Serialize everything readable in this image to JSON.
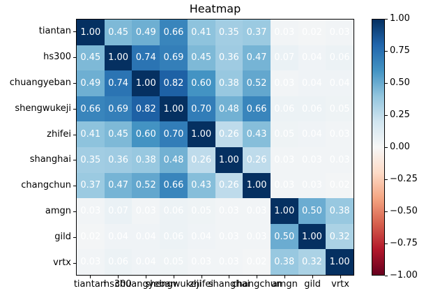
{
  "title": "Heatmap",
  "chart_data": {
    "type": "heatmap",
    "title": "Heatmap",
    "x_categories": [
      "tiantan",
      "hs300",
      "chuangyeban",
      "shengwukeji",
      "zhifei",
      "shanghai",
      "changchun",
      "amgn",
      "gild",
      "vrtx"
    ],
    "y_categories": [
      "tiantan",
      "hs300",
      "chuangyeban",
      "shengwukeji",
      "zhifei",
      "shanghai",
      "changchun",
      "amgn",
      "gild",
      "vrtx"
    ],
    "values": [
      [
        1.0,
        0.45,
        0.49,
        0.66,
        0.41,
        0.35,
        0.37,
        0.03,
        0.02,
        0.03
      ],
      [
        0.45,
        1.0,
        0.74,
        0.69,
        0.45,
        0.36,
        0.47,
        0.07,
        0.04,
        0.06
      ],
      [
        0.49,
        0.74,
        1.0,
        0.82,
        0.6,
        0.38,
        0.52,
        0.03,
        0.04,
        0.04
      ],
      [
        0.66,
        0.69,
        0.82,
        1.0,
        0.7,
        0.48,
        0.66,
        0.06,
        0.06,
        0.05
      ],
      [
        0.41,
        0.45,
        0.6,
        0.7,
        1.0,
        0.26,
        0.43,
        0.05,
        0.04,
        0.03
      ],
      [
        0.35,
        0.36,
        0.38,
        0.48,
        0.26,
        1.0,
        0.26,
        0.03,
        0.03,
        0.03
      ],
      [
        0.37,
        0.47,
        0.52,
        0.66,
        0.43,
        0.26,
        1.0,
        0.03,
        0.03,
        0.02
      ],
      [
        0.03,
        0.07,
        0.03,
        0.06,
        0.05,
        0.03,
        0.03,
        1.0,
        0.5,
        0.38
      ],
      [
        0.02,
        0.04,
        0.04,
        0.06,
        0.04,
        0.03,
        0.03,
        0.5,
        1.0,
        0.32
      ],
      [
        0.03,
        0.06,
        0.04,
        0.05,
        0.03,
        0.03,
        0.02,
        0.38,
        0.32,
        1.0
      ]
    ],
    "cell_text_color": "#ffffff",
    "colormap": {
      "name": "RdBu",
      "stops": [
        "#67001f",
        "#b2182b",
        "#d6604d",
        "#f4a582",
        "#fddbc7",
        "#f7f7f7",
        "#d1e5f0",
        "#92c5de",
        "#4393c3",
        "#2166ac",
        "#053061"
      ]
    },
    "colorbar": {
      "vmin": -1,
      "vmax": 1,
      "tick_labels": [
        "1.00",
        "0.75",
        "0.50",
        "0.25",
        "0.00",
        "−0.25",
        "−0.50",
        "−0.75",
        "−1.00"
      ]
    },
    "grid": false,
    "legend_position": "colorbar-right"
  }
}
